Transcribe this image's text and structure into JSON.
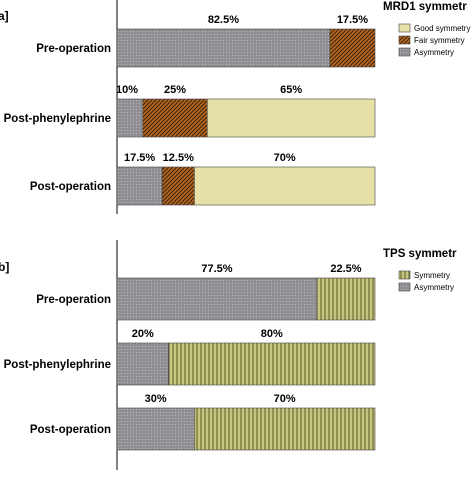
{
  "colors": {
    "asymmetry": "#8e8e93",
    "fair_symmetry": "#b5651d",
    "good_symmetry": "#e6e1a6",
    "tps_symmetry": "#c8c77f"
  },
  "chart_data": [
    {
      "type": "bar",
      "orientation": "horizontal",
      "stacked": true,
      "panel_label": "a]",
      "legend_title": "MRD1 symmetr",
      "legend_position": "top-right",
      "categories": [
        "Pre-operation",
        "Post-phenylephrine",
        "Post-operation"
      ],
      "xlim": [
        0,
        100
      ],
      "series": [
        {
          "name": "Asymmetry",
          "values": [
            82.5,
            10,
            17.5
          ],
          "labels": [
            "82.5%",
            "10%",
            "17.5%"
          ],
          "color": "asymmetry",
          "pattern": "dots"
        },
        {
          "name": "Fair symmetry",
          "values": [
            17.5,
            25,
            12.5
          ],
          "labels": [
            "17.5%",
            "25%",
            "12.5%"
          ],
          "color": "fair_symmetry",
          "pattern": "diagonal"
        },
        {
          "name": "Good symmetry",
          "values": [
            0,
            65,
            70
          ],
          "labels": [
            "",
            "65%",
            "70%"
          ],
          "color": "good_symmetry",
          "pattern": "none"
        }
      ],
      "legend_order": [
        "Good symmetry",
        "Fair symmetry",
        "Asymmetry"
      ]
    },
    {
      "type": "bar",
      "orientation": "horizontal",
      "stacked": true,
      "panel_label": "b]",
      "legend_title": "TPS symmetr",
      "legend_position": "top-right",
      "categories": [
        "Pre-operation",
        "Post-phenylephrine",
        "Post-operation"
      ],
      "xlim": [
        0,
        100
      ],
      "series": [
        {
          "name": "Asymmetry",
          "values": [
            77.5,
            20,
            30
          ],
          "labels": [
            "77.5%",
            "20%",
            "30%"
          ],
          "color": "asymmetry",
          "pattern": "dots"
        },
        {
          "name": "Symmetry",
          "values": [
            22.5,
            80,
            70
          ],
          "labels": [
            "22.5%",
            "80%",
            "70%"
          ],
          "color": "tps_symmetry",
          "pattern": "vertical"
        }
      ],
      "legend_order": [
        "Symmetry",
        "Asymmetry"
      ]
    }
  ]
}
